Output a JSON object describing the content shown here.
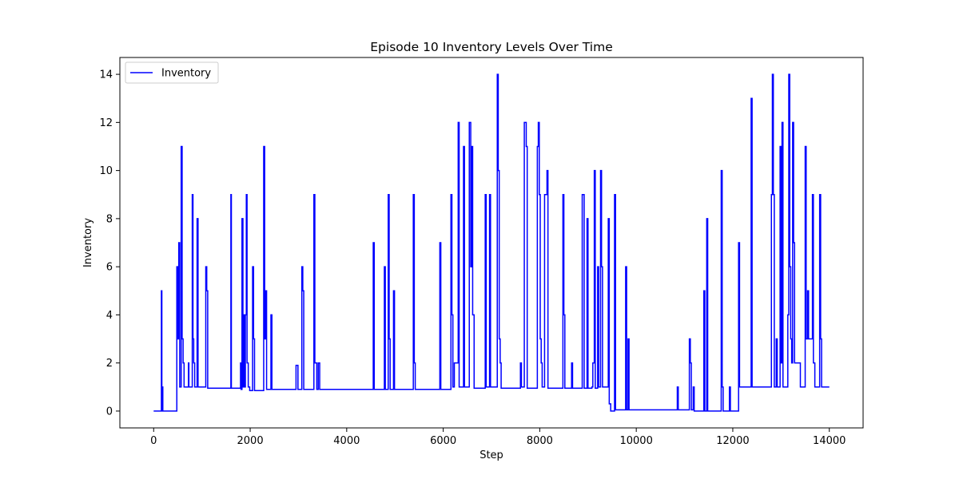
{
  "chart_data": {
    "type": "line",
    "title": "Episode 10 Inventory Levels Over Time",
    "xlabel": "Step",
    "ylabel": "Inventory",
    "xlim": [
      -700,
      14700
    ],
    "ylim": [
      -0.7,
      14.7
    ],
    "xticks": [
      0,
      2000,
      4000,
      6000,
      8000,
      10000,
      12000,
      14000
    ],
    "yticks": [
      0,
      2,
      4,
      6,
      8,
      10,
      12,
      14
    ],
    "grid": false,
    "legend": {
      "position": "top-left",
      "entries": [
        "Inventory"
      ]
    },
    "series": [
      {
        "name": "Inventory",
        "color": "#0000ff",
        "step": true,
        "points": [
          [
            0,
            0
          ],
          [
            150,
            0
          ],
          [
            160,
            5
          ],
          [
            170,
            0
          ],
          [
            180,
            1
          ],
          [
            190,
            0
          ],
          [
            470,
            0
          ],
          [
            480,
            6
          ],
          [
            500,
            3
          ],
          [
            520,
            7
          ],
          [
            540,
            1
          ],
          [
            570,
            11
          ],
          [
            590,
            3
          ],
          [
            610,
            2
          ],
          [
            630,
            1
          ],
          [
            720,
            2
          ],
          [
            730,
            1
          ],
          [
            800,
            9
          ],
          [
            815,
            3
          ],
          [
            830,
            2
          ],
          [
            850,
            1
          ],
          [
            900,
            8
          ],
          [
            920,
            1
          ],
          [
            1080,
            6
          ],
          [
            1100,
            5
          ],
          [
            1120,
            0.95
          ],
          [
            1600,
            9
          ],
          [
            1610,
            0.95
          ],
          [
            1800,
            2
          ],
          [
            1810,
            0.9
          ],
          [
            1830,
            8
          ],
          [
            1850,
            1
          ],
          [
            1870,
            4
          ],
          [
            1885,
            1
          ],
          [
            1900,
            4
          ],
          [
            1920,
            9
          ],
          [
            1935,
            2
          ],
          [
            1960,
            1
          ],
          [
            1990,
            0.85
          ],
          [
            2050,
            6
          ],
          [
            2070,
            3
          ],
          [
            2090,
            0.85
          ],
          [
            2280,
            11
          ],
          [
            2300,
            3
          ],
          [
            2320,
            5
          ],
          [
            2340,
            0.9
          ],
          [
            2430,
            4
          ],
          [
            2450,
            0.9
          ],
          [
            2950,
            1.9
          ],
          [
            2990,
            0.9
          ],
          [
            3070,
            6
          ],
          [
            3090,
            5
          ],
          [
            3110,
            0.9
          ],
          [
            3320,
            9
          ],
          [
            3340,
            2
          ],
          [
            3380,
            0.9
          ],
          [
            3410,
            2
          ],
          [
            3440,
            0.9
          ],
          [
            4550,
            7
          ],
          [
            4570,
            0.9
          ],
          [
            4780,
            6
          ],
          [
            4800,
            0.9
          ],
          [
            4860,
            9
          ],
          [
            4880,
            3
          ],
          [
            4900,
            0.9
          ],
          [
            4970,
            5
          ],
          [
            4990,
            0.9
          ],
          [
            5380,
            9
          ],
          [
            5400,
            2
          ],
          [
            5420,
            0.9
          ],
          [
            5930,
            7
          ],
          [
            5950,
            0.9
          ],
          [
            6160,
            9
          ],
          [
            6180,
            4
          ],
          [
            6200,
            1
          ],
          [
            6230,
            2
          ],
          [
            6310,
            12
          ],
          [
            6330,
            1
          ],
          [
            6420,
            11
          ],
          [
            6440,
            1
          ],
          [
            6540,
            12
          ],
          [
            6570,
            6
          ],
          [
            6590,
            11
          ],
          [
            6610,
            4
          ],
          [
            6640,
            0.95
          ],
          [
            6870,
            9
          ],
          [
            6890,
            1
          ],
          [
            6960,
            9
          ],
          [
            6980,
            1
          ],
          [
            7120,
            14
          ],
          [
            7140,
            10
          ],
          [
            7160,
            3
          ],
          [
            7180,
            2
          ],
          [
            7200,
            0.95
          ],
          [
            7600,
            2
          ],
          [
            7620,
            1
          ],
          [
            7680,
            12
          ],
          [
            7700,
            12
          ],
          [
            7720,
            11
          ],
          [
            7740,
            0.95
          ],
          [
            7950,
            11
          ],
          [
            7970,
            12
          ],
          [
            7990,
            9
          ],
          [
            8010,
            3
          ],
          [
            8030,
            2
          ],
          [
            8050,
            1
          ],
          [
            8100,
            9
          ],
          [
            8150,
            10
          ],
          [
            8170,
            0.95
          ],
          [
            8480,
            9
          ],
          [
            8500,
            4
          ],
          [
            8520,
            0.95
          ],
          [
            8660,
            2
          ],
          [
            8680,
            0.95
          ],
          [
            8880,
            9
          ],
          [
            8900,
            9
          ],
          [
            8920,
            0.95
          ],
          [
            8980,
            8
          ],
          [
            9000,
            0.95
          ],
          [
            9080,
            1
          ],
          [
            9100,
            2
          ],
          [
            9130,
            10
          ],
          [
            9150,
            0.95
          ],
          [
            9200,
            6
          ],
          [
            9220,
            1
          ],
          [
            9260,
            10
          ],
          [
            9280,
            6
          ],
          [
            9300,
            1
          ],
          [
            9420,
            8
          ],
          [
            9440,
            0.3
          ],
          [
            9470,
            0
          ],
          [
            9500,
            0
          ],
          [
            9550,
            9
          ],
          [
            9570,
            0.05
          ],
          [
            9780,
            6
          ],
          [
            9800,
            0.05
          ],
          [
            9830,
            3
          ],
          [
            9850,
            0.05
          ],
          [
            10850,
            1
          ],
          [
            10870,
            0.05
          ],
          [
            11100,
            3
          ],
          [
            11120,
            2
          ],
          [
            11140,
            0.05
          ],
          [
            11180,
            1
          ],
          [
            11200,
            0
          ],
          [
            11400,
            5
          ],
          [
            11420,
            0
          ],
          [
            11460,
            8
          ],
          [
            11480,
            0
          ],
          [
            11760,
            10
          ],
          [
            11780,
            1
          ],
          [
            11800,
            0
          ],
          [
            11930,
            1
          ],
          [
            11950,
            0
          ],
          [
            12100,
            0
          ],
          [
            12120,
            7
          ],
          [
            12140,
            1
          ],
          [
            12380,
            13
          ],
          [
            12400,
            1
          ],
          [
            12800,
            9
          ],
          [
            12820,
            14
          ],
          [
            12840,
            9
          ],
          [
            12860,
            1
          ],
          [
            12900,
            3
          ],
          [
            12920,
            1
          ],
          [
            12980,
            11
          ],
          [
            13000,
            2
          ],
          [
            13020,
            12
          ],
          [
            13040,
            1
          ],
          [
            13140,
            4
          ],
          [
            13160,
            14
          ],
          [
            13180,
            6
          ],
          [
            13200,
            3
          ],
          [
            13220,
            2
          ],
          [
            13240,
            12
          ],
          [
            13260,
            7
          ],
          [
            13280,
            2
          ],
          [
            13400,
            1
          ],
          [
            13500,
            11
          ],
          [
            13520,
            3
          ],
          [
            13550,
            5
          ],
          [
            13570,
            3
          ],
          [
            13650,
            9
          ],
          [
            13670,
            2
          ],
          [
            13700,
            1
          ],
          [
            13800,
            9
          ],
          [
            13820,
            3
          ],
          [
            13840,
            1
          ],
          [
            14000,
            1
          ]
        ]
      }
    ]
  }
}
